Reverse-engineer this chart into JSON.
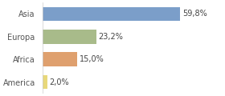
{
  "categories": [
    "Asia",
    "Europa",
    "Africa",
    "America"
  ],
  "values": [
    59.8,
    23.2,
    15.0,
    2.0
  ],
  "labels": [
    "59,8%",
    "23,2%",
    "15,0%",
    "2,0%"
  ],
  "bar_colors": [
    "#7b9ec9",
    "#a8bb8a",
    "#dfa06e",
    "#e8d87a"
  ],
  "background_color": "#ffffff",
  "xlim": [
    0,
    78
  ],
  "bar_height": 0.62,
  "label_fontsize": 7.0,
  "tick_fontsize": 7.0,
  "figsize": [
    2.8,
    1.2
  ],
  "dpi": 100
}
